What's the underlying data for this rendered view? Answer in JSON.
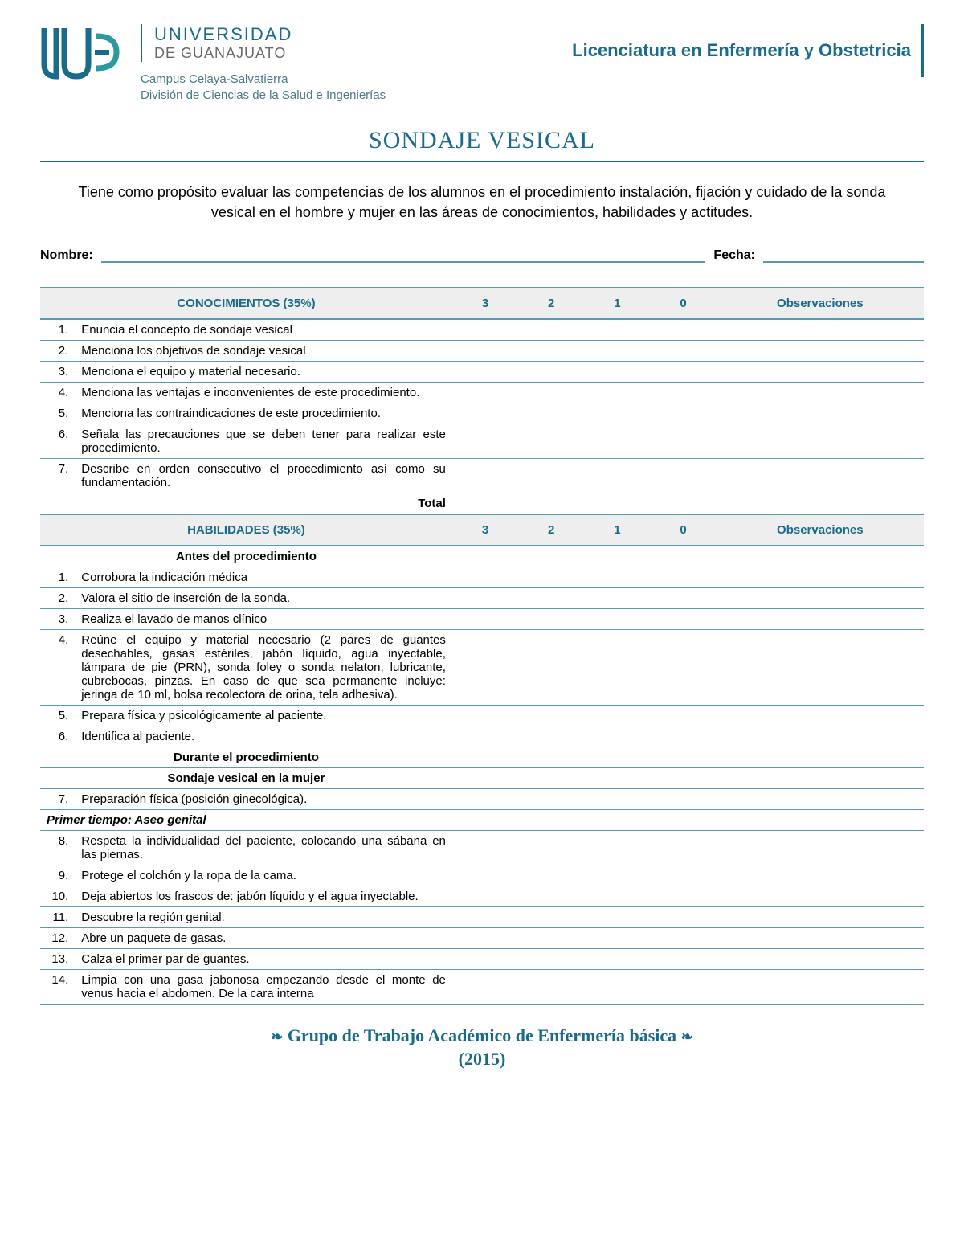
{
  "header": {
    "university_top": "UNIVERSIDAD",
    "university_bottom": "DE GUANAJUATO",
    "campus_line1": "Campus Celaya-Salvatierra",
    "campus_line2": "División de Ciencias de la Salud e Ingenierías",
    "program": "Licenciatura en Enfermería y Obstetricia"
  },
  "title": "SONDAJE VESICAL",
  "purpose": "Tiene como propósito evaluar las competencias de los alumnos en el procedimiento instalación, fijación y cuidado de la sonda vesical en el hombre y mujer en las áreas de conocimientos, habilidades y actitudes.",
  "fields": {
    "name_label": "Nombre:",
    "date_label": "Fecha:"
  },
  "columns": {
    "score3": "3",
    "score2": "2",
    "score1": "1",
    "score0": "0",
    "obs": "Observaciones"
  },
  "section1": {
    "header": "CONOCIMIENTOS (35%)",
    "rows": [
      {
        "n": "1.",
        "t": "Enuncia el concepto de sondaje vesical"
      },
      {
        "n": "2.",
        "t": "Menciona los objetivos de sondaje vesical"
      },
      {
        "n": "3.",
        "t": "Menciona el equipo y material necesario."
      },
      {
        "n": "4.",
        "t": "Menciona las ventajas e inconvenientes de este procedimiento."
      },
      {
        "n": "5.",
        "t": "Menciona las contraindicaciones de este procedimiento."
      },
      {
        "n": "6.",
        "t": "Señala las precauciones que se deben tener para realizar este procedimiento."
      },
      {
        "n": "7.",
        "t": "Describe en orden consecutivo el procedimiento así como su fundamentación."
      }
    ],
    "total_label": "Total"
  },
  "section2": {
    "header": "HABILIDADES (35%)",
    "sub_before": "Antes del procedimiento",
    "rows_before": [
      {
        "n": "1.",
        "t": "Corrobora la indicación médica"
      },
      {
        "n": "2.",
        "t": "Valora el sitio de inserción de la sonda."
      },
      {
        "n": "3.",
        "t": "Realiza el lavado de manos clínico"
      },
      {
        "n": "4.",
        "t": "Reúne el equipo y material necesario (2 pares de guantes desechables, gasas estériles, jabón líquido, agua inyectable, lámpara de pie (PRN), sonda foley o sonda nelaton, lubricante, cubrebocas, pinzas. En caso de que sea permanente incluye: jeringa de 10 ml, bolsa recolectora de orina, tela adhesiva)."
      },
      {
        "n": "5.",
        "t": "Prepara física y psicológicamente al paciente."
      },
      {
        "n": "6.",
        "t": "Identifica al paciente."
      }
    ],
    "sub_during": "Durante el procedimiento",
    "sub_woman": "Sondaje vesical en la mujer",
    "rows_during1": [
      {
        "n": "7.",
        "t": "Preparación física (posición ginecológica)."
      }
    ],
    "sub_primer": "Primer tiempo:  Aseo genital",
    "rows_primer": [
      {
        "n": "8.",
        "t": "Respeta la individualidad del paciente, colocando una sábana en las piernas."
      },
      {
        "n": "9.",
        "t": "Protege el colchón y la ropa de la cama."
      },
      {
        "n": "10.",
        "t": "Deja abiertos los frascos de: jabón líquido y el agua inyectable."
      },
      {
        "n": "11.",
        "t": "Descubre la región genital."
      },
      {
        "n": "12.",
        "t": "Abre un paquete de gasas."
      },
      {
        "n": "13.",
        "t": "Calza el primer par de guantes."
      },
      {
        "n": "14.",
        "t": "Limpia con una gasa jabonosa empezando desde el monte de venus hacia el abdomen. De la cara interna"
      }
    ]
  },
  "footer": {
    "line1": "Grupo de Trabajo Académico de Enfermería básica",
    "line2": "(2015)"
  },
  "colors": {
    "brand": "#1a6b8a",
    "rule": "#5a9ab0",
    "header_bg": "#eeeeee"
  }
}
